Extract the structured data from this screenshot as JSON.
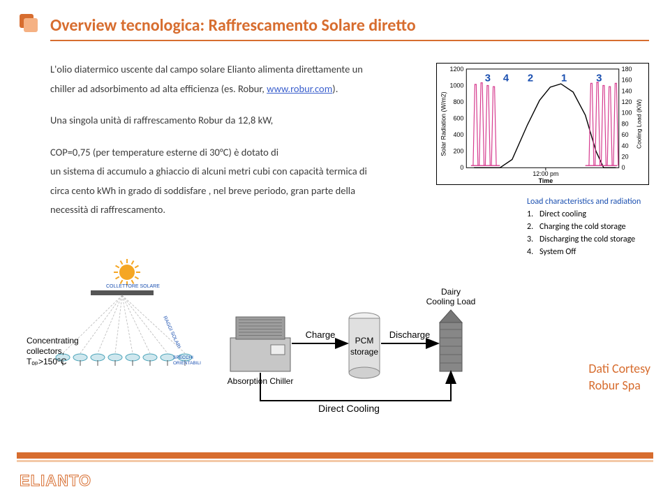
{
  "header": {
    "title": "Overview tecnologica: Raffrescamento Solare diretto"
  },
  "paragraph": {
    "p1": "L'olio diatermico uscente dal campo solare Elianto alimenta direttamente un chiller ad adsorbimento ad alta efficienza (es. Robur, ",
    "link": "www.robur.com",
    "p1end": ").",
    "p2": "Una singola unità di raffrescamento Robur da 12,8 kW,",
    "p3": "COP=0,75 (per temperature esterne di 30°C) è dotato di",
    "p4": "un sistema di accumulo a ghiaccio di alcuni metri cubi con capacità termica di circa cento kWh in grado di soddisfare , nel breve periodo, gran parte della necessità di raffrescamento."
  },
  "chart": {
    "type": "dual-axis-line",
    "y_left_label": "Solar Radiation (W/m2)",
    "y_right_label": "Cooling Load (KW)",
    "x_label": "Time",
    "x_tick_label": "12:00 pm",
    "y_left": {
      "min": 0,
      "max": 1200,
      "step": 200
    },
    "y_right": {
      "min": 0,
      "max": 180,
      "step": 20
    },
    "annotations": [
      {
        "label": "3",
        "x": 0.14,
        "color": "#1a4fb0"
      },
      {
        "label": "4",
        "x": 0.26,
        "color": "#1a4fb0"
      },
      {
        "label": "2",
        "x": 0.42,
        "color": "#1a4fb0"
      },
      {
        "label": "1",
        "x": 0.64,
        "color": "#1a4fb0"
      },
      {
        "label": "3",
        "x": 0.87,
        "color": "#1a4fb0"
      }
    ],
    "solar_curve": {
      "color": "#000000",
      "points": [
        [
          0.05,
          0
        ],
        [
          0.1,
          0
        ],
        [
          0.22,
          0
        ],
        [
          0.3,
          100
        ],
        [
          0.4,
          520
        ],
        [
          0.48,
          820
        ],
        [
          0.55,
          980
        ],
        [
          0.62,
          1020
        ],
        [
          0.7,
          920
        ],
        [
          0.78,
          640
        ],
        [
          0.85,
          200
        ],
        [
          0.9,
          0
        ],
        [
          0.98,
          0
        ]
      ]
    },
    "load_spikes": {
      "color": "#d63a8e",
      "baseline": 4,
      "spikes": [
        [
          0.06,
          152
        ],
        [
          0.1,
          155
        ],
        [
          0.14,
          150
        ],
        [
          0.18,
          148
        ],
        [
          0.82,
          154
        ],
        [
          0.86,
          156
        ],
        [
          0.9,
          150
        ],
        [
          0.94,
          148
        ],
        [
          0.98,
          154
        ]
      ],
      "gap": [
        0.22,
        0.78
      ]
    }
  },
  "legend": {
    "head": "Load characteristics and radiation",
    "items": [
      {
        "n": "1.",
        "t": "Direct cooling"
      },
      {
        "n": "2.",
        "t": "Charging the cold storage"
      },
      {
        "n": "3.",
        "t": "Discharging the cold storage"
      },
      {
        "n": "4.",
        "t": "System Off"
      }
    ]
  },
  "diagram": {
    "concentrating_label_1": "Concentrating",
    "concentrating_label_2": "collectors,",
    "concentrating_label_3": "Tₒₚ>150⁰C",
    "collettore": "COLLETTORE SOLARE",
    "raggi": "RAGGI SOLARI",
    "specchi": "SPECCHI ORIENTABILI",
    "chiller": "Absorption Chiller",
    "pcm1": "PCM",
    "pcm2": "storage",
    "charge": "Charge",
    "discharge": "Discharge",
    "dairy1": "Dairy",
    "dairy2": "Cooling Load",
    "direct": "Direct  Cooling",
    "sun_color": "#f5a623",
    "mirror_fill": "#cfe7ee",
    "mirror_stroke": "#4aa3b8",
    "collector_fill": "#555555",
    "chiller_body": "#c7c7c7",
    "chiller_panel": "#9e9e9e",
    "pcm_body": "#e0e0e0",
    "silo_body": "#878787",
    "arrow_color": "#000000"
  },
  "courtesy": {
    "l1": "Dati Cortesy",
    "l2": "Robur Spa"
  },
  "footer": {
    "logo": "ELIANTO"
  }
}
